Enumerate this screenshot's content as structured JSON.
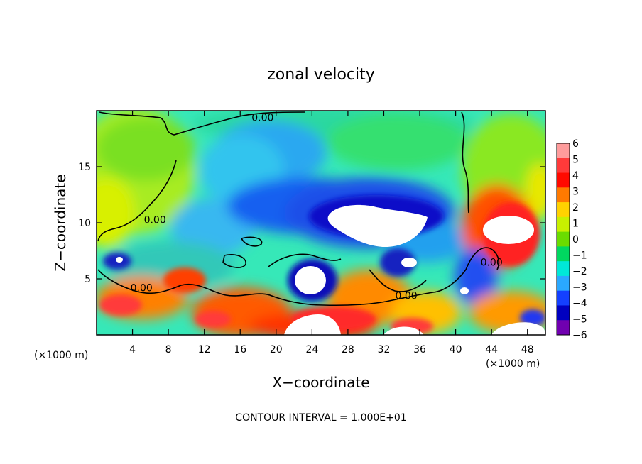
{
  "chart_data": {
    "type": "heatmap",
    "title": "zonal velocity",
    "xlabel": "X−coordinate",
    "ylabel": "Z−coordinate",
    "x_unit_left": "(×1000 m)",
    "x_unit_right": "(×1000 m)",
    "footer": "CONTOUR INTERVAL = 1.000E+01",
    "xlim": [
      0,
      50
    ],
    "ylim": [
      0,
      20
    ],
    "x_ticks": [
      4,
      8,
      12,
      16,
      20,
      24,
      28,
      32,
      36,
      40,
      44,
      48
    ],
    "x_tick_labels": [
      "4",
      "8",
      "12",
      "16",
      "20",
      "24",
      "28",
      "32",
      "36",
      "40",
      "44",
      "48"
    ],
    "y_ticks": [
      5,
      10,
      15
    ],
    "y_tick_labels": [
      "5",
      "10",
      "15"
    ],
    "contour_labels": [
      {
        "text": "0.00",
        "x": 18.5,
        "y": 19.4
      },
      {
        "text": "0.00",
        "x": 6.5,
        "y": 10.3
      },
      {
        "text": "0.00",
        "x": 5.0,
        "y": 4.2
      },
      {
        "text": "0.00",
        "x": 34.5,
        "y": 3.5
      },
      {
        "text": "0.00",
        "x": 44.0,
        "y": 6.5
      }
    ],
    "colorbar": {
      "levels": [
        6,
        5,
        4,
        3,
        2,
        1,
        0,
        -1,
        -2,
        -3,
        -4,
        -5,
        -6
      ],
      "labels": [
        "6",
        "5",
        "4",
        "3",
        "2",
        "1",
        "0",
        "−1",
        "−2",
        "−3",
        "−4",
        "−5",
        "−6"
      ],
      "colors": [
        "#ff9c9c",
        "#ff3a3a",
        "#ff0a00",
        "#ff7a00",
        "#ffd200",
        "#c8f000",
        "#6adc00",
        "#00d860",
        "#00e8d8",
        "#2aa8ff",
        "#1440ff",
        "#0000c0",
        "#7000b0"
      ]
    }
  }
}
